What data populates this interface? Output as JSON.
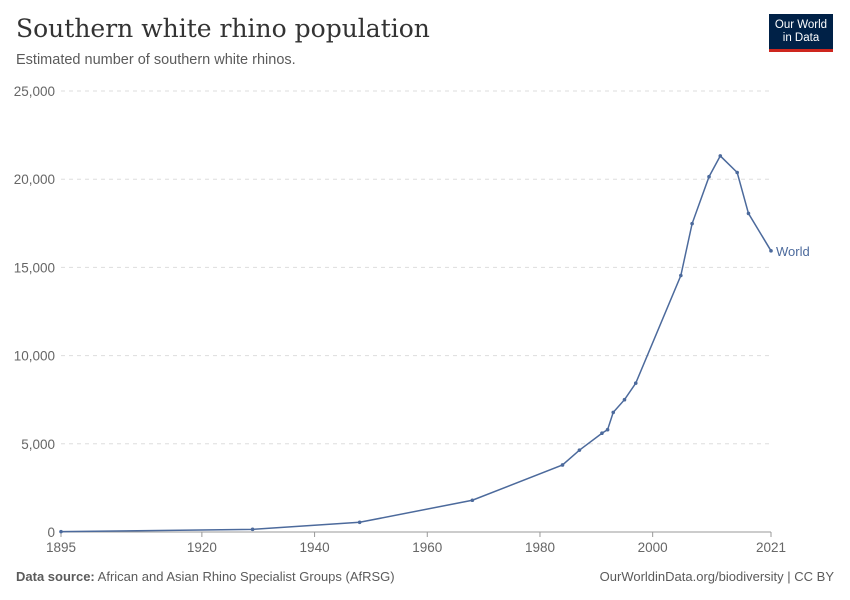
{
  "header": {
    "title": "Southern white rhino population",
    "subtitle": "Estimated number of southern white rhinos.",
    "logo": "Our World in Data"
  },
  "footer": {
    "source_label": "Data source:",
    "source": "African and Asian Rhino Specialist Groups (AfRSG)",
    "credit": "OurWorldinData.org/biodiversity | CC BY"
  },
  "chart_data": {
    "type": "line",
    "title": "Southern white rhino population",
    "subtitle": "Estimated number of southern white rhinos.",
    "xlim": [
      1895,
      2021
    ],
    "ylim": [
      0,
      25000
    ],
    "xticks": [
      "1895",
      "1920",
      "1940",
      "1960",
      "1980",
      "2000",
      "2021"
    ],
    "yticks": [
      "0",
      "5,000",
      "10,000",
      "15,000",
      "20,000",
      "25,000"
    ],
    "grid": "horizontal dashed",
    "series": [
      {
        "name": "World",
        "color": "#4c6a9c",
        "x": [
          1895,
          1929,
          1948,
          1968,
          1984,
          1987,
          1991,
          1992,
          1993,
          1995,
          1997,
          2005,
          2007,
          2010,
          2012,
          2015,
          2017,
          2021
        ],
        "y": [
          20,
          150,
          550,
          1800,
          3800,
          4640,
          5600,
          5800,
          6780,
          7500,
          8440,
          14540,
          17480,
          20140,
          21320,
          20380,
          18060,
          15940
        ]
      }
    ]
  }
}
